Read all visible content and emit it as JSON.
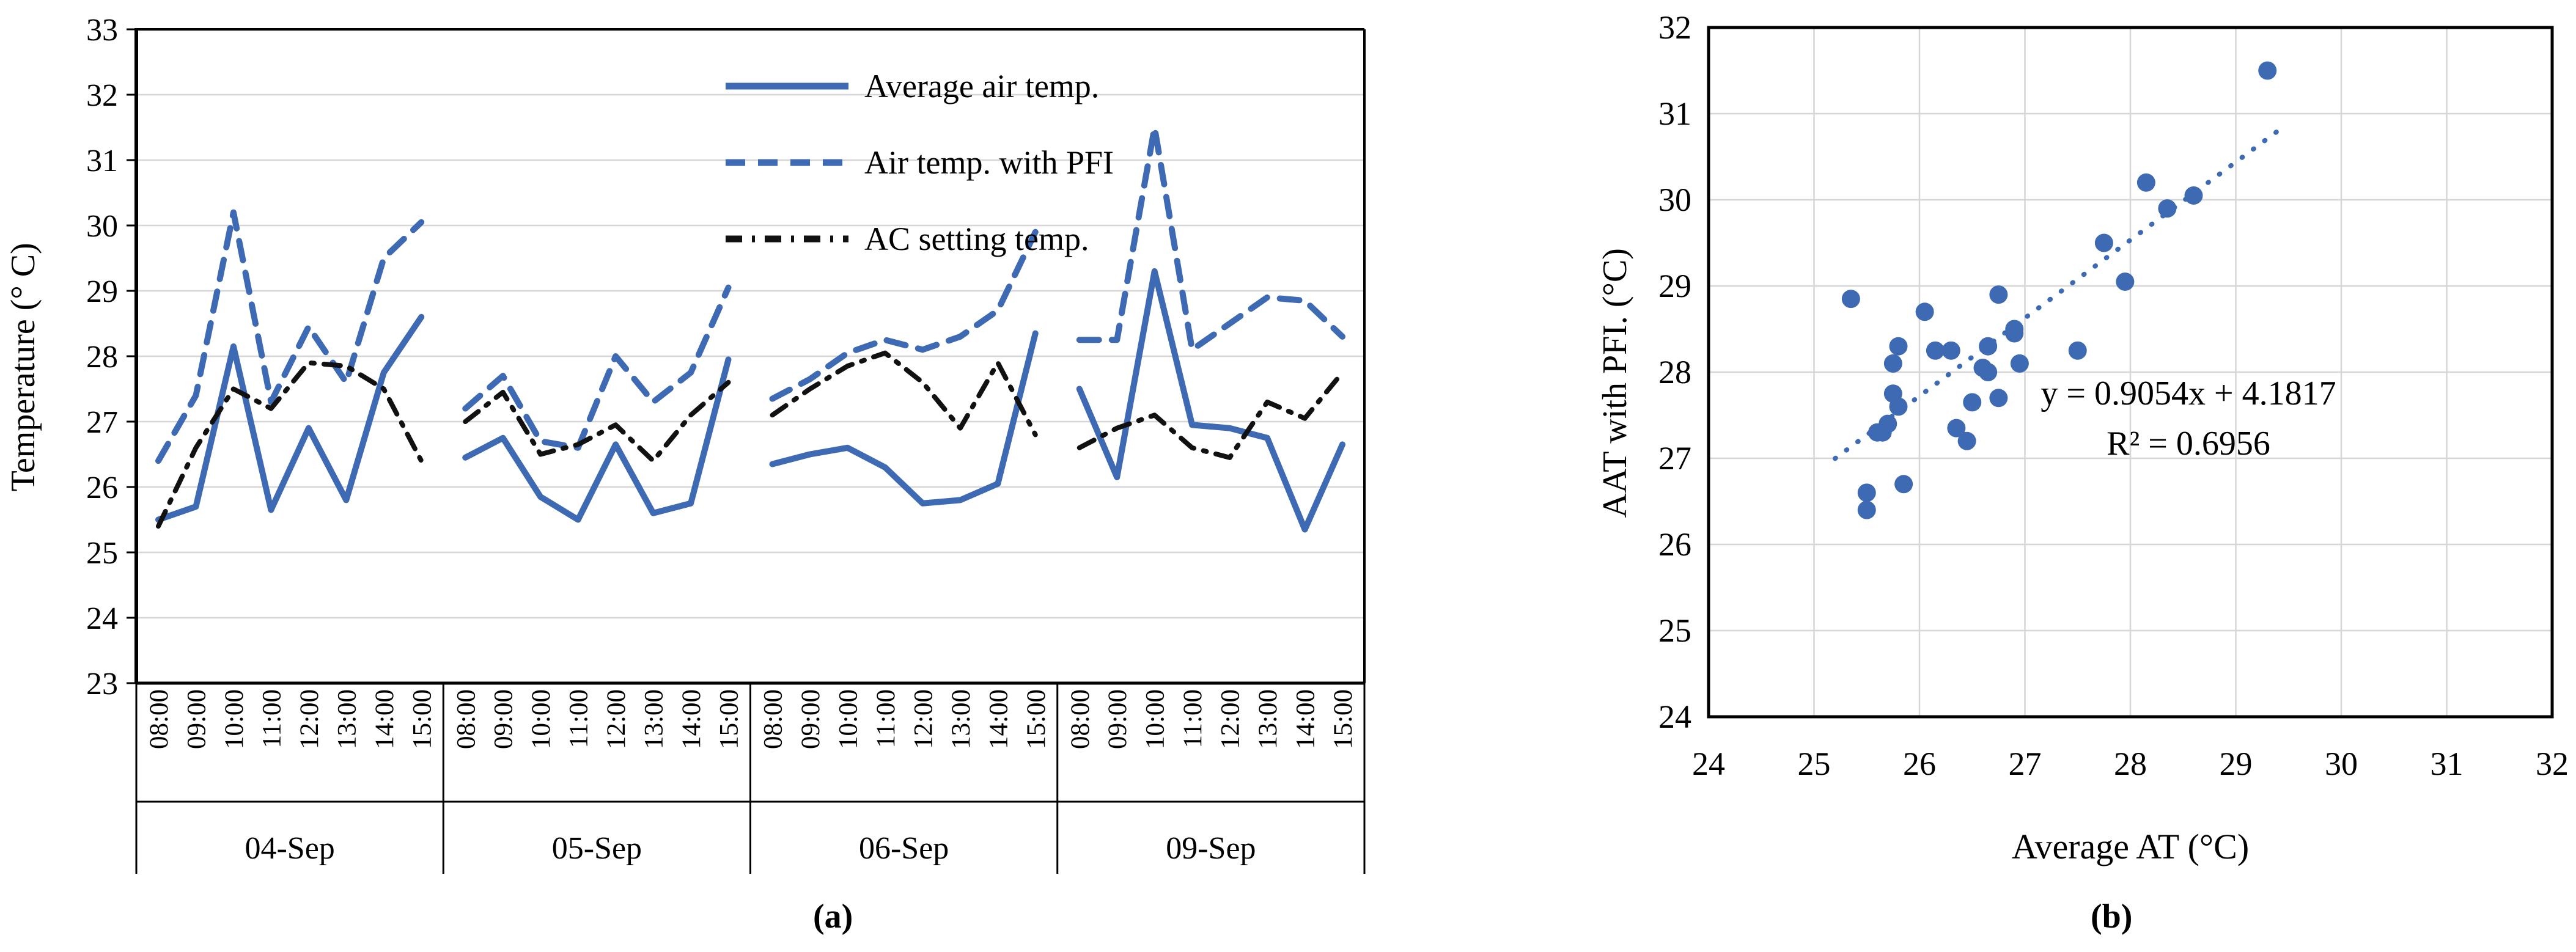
{
  "figure": {
    "caption_a": "(a)",
    "caption_b": "(b)",
    "colors": {
      "blue": "#3E69B3",
      "black": "#111111",
      "grid": "#D6D6D6",
      "axis": "#000000"
    }
  },
  "chart_data": [
    {
      "type": "line",
      "title": "",
      "ylabel": "Temperature (° C)",
      "ylim": [
        23,
        33
      ],
      "yticks": [
        23,
        24,
        25,
        26,
        27,
        28,
        29,
        30,
        31,
        32,
        33
      ],
      "grid": "horizontal",
      "times": [
        "08:00",
        "09:00",
        "10:00",
        "11:00",
        "12:00",
        "13:00",
        "14:00",
        "15:00"
      ],
      "days": [
        "04-Sep",
        "05-Sep",
        "06-Sep",
        "09-Sep"
      ],
      "legend_position": "top-center-inside",
      "legend": [
        {
          "name": "Average air temp.",
          "style": "solid",
          "color": "blue"
        },
        {
          "name": "Air temp. with PFI",
          "style": "dashed",
          "color": "blue"
        },
        {
          "name": "AC setting temp.",
          "style": "dashdot",
          "color": "black"
        }
      ],
      "series": [
        {
          "key": "avg",
          "name": "Average air temp.",
          "style": "solid",
          "color": "blue",
          "values_by_day": [
            [
              25.5,
              25.7,
              28.15,
              25.65,
              26.9,
              25.8,
              27.75,
              28.6
            ],
            [
              26.45,
              26.75,
              25.85,
              25.5,
              26.65,
              25.6,
              25.75,
              27.95
            ],
            [
              26.35,
              26.5,
              26.6,
              26.3,
              25.75,
              25.8,
              26.05,
              28.35
            ],
            [
              27.5,
              26.15,
              29.3,
              26.95,
              26.9,
              26.75,
              25.35,
              26.65
            ]
          ]
        },
        {
          "key": "pfi",
          "name": "Air temp. with PFI",
          "style": "dashed",
          "color": "blue",
          "values_by_day": [
            [
              26.4,
              27.4,
              30.2,
              27.3,
              28.45,
              27.6,
              29.5,
              30.05
            ],
            [
              27.2,
              27.7,
              26.7,
              26.6,
              28.0,
              27.3,
              27.75,
              29.05
            ],
            [
              27.35,
              27.65,
              28.05,
              28.25,
              28.1,
              28.3,
              28.7,
              29.9
            ],
            [
              28.25,
              28.25,
              31.5,
              28.1,
              28.5,
              28.9,
              28.85,
              28.3
            ]
          ]
        },
        {
          "key": "ac",
          "name": "AC setting temp.",
          "style": "dashdot",
          "color": "black",
          "values_by_day": [
            [
              25.4,
              26.6,
              27.5,
              27.2,
              27.9,
              27.85,
              27.5,
              26.4
            ],
            [
              27.0,
              27.45,
              26.5,
              26.65,
              26.95,
              26.4,
              27.1,
              27.6
            ],
            [
              27.1,
              27.5,
              27.85,
              28.05,
              27.6,
              26.9,
              27.9,
              26.8
            ],
            [
              26.6,
              26.9,
              27.1,
              26.6,
              26.45,
              27.3,
              27.05,
              27.75
            ]
          ]
        }
      ]
    },
    {
      "type": "scatter",
      "title": "",
      "xlabel": "Average AT (°C)",
      "ylabel": "AAT with PFI. (°C)",
      "xlim": [
        24,
        32
      ],
      "ylim": [
        24,
        32
      ],
      "xticks": [
        24,
        25,
        26,
        27,
        28,
        29,
        30,
        31,
        32
      ],
      "yticks": [
        24,
        25,
        26,
        27,
        28,
        29,
        30,
        31,
        32
      ],
      "grid": "both",
      "equation_line1": "y = 0.9054x + 4.1817",
      "equation_line2": "R² = 0.6956",
      "trend": {
        "slope": 0.9054,
        "intercept": 4.1817,
        "x_start": 25.2,
        "x_end": 29.45,
        "style": "dotted",
        "color": "blue"
      },
      "points": [
        [
          25.5,
          26.4
        ],
        [
          25.7,
          27.4
        ],
        [
          28.15,
          30.2
        ],
        [
          25.65,
          27.3
        ],
        [
          26.9,
          28.45
        ],
        [
          25.8,
          27.6
        ],
        [
          27.75,
          29.5
        ],
        [
          28.6,
          30.05
        ],
        [
          26.45,
          27.2
        ],
        [
          26.75,
          27.7
        ],
        [
          25.85,
          26.7
        ],
        [
          25.5,
          26.6
        ],
        [
          26.65,
          28.0
        ],
        [
          25.6,
          27.3
        ],
        [
          25.75,
          27.75
        ],
        [
          27.95,
          29.05
        ],
        [
          26.35,
          27.35
        ],
        [
          26.5,
          27.65
        ],
        [
          26.6,
          28.05
        ],
        [
          26.3,
          28.25
        ],
        [
          25.75,
          28.1
        ],
        [
          25.8,
          28.3
        ],
        [
          26.05,
          28.7
        ],
        [
          28.35,
          29.9
        ],
        [
          27.5,
          28.25
        ],
        [
          26.15,
          28.25
        ],
        [
          29.3,
          31.5
        ],
        [
          26.95,
          28.1
        ],
        [
          26.9,
          28.5
        ],
        [
          26.75,
          28.9
        ],
        [
          25.35,
          28.85
        ],
        [
          26.65,
          28.3
        ]
      ]
    }
  ]
}
